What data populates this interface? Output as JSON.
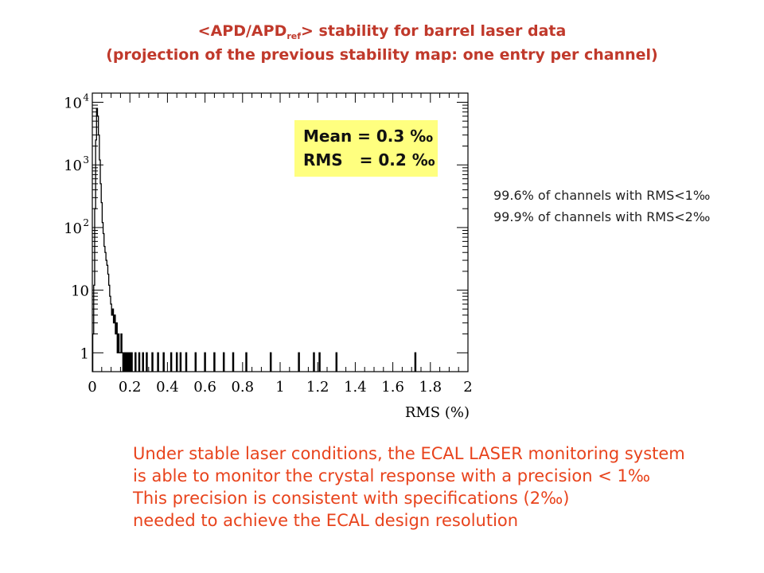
{
  "title": {
    "line1_prefix": "<APD/APD",
    "line1_sub": "ref",
    "line1_suffix": "> stability for barrel laser data",
    "line2": "(projection of the previous stability map: one entry per channel)"
  },
  "stats_box": {
    "mean": "Mean = 0.3 ‰",
    "rms": "RMS   = 0.2 ‰",
    "background": "#ffff7f"
  },
  "side_notes": [
    "99.6% of channels with RMS<1‰",
    "99.9% of channels with RMS<2‰"
  ],
  "conclusion": [
    "Under stable laser conditions, the ECAL LASER monitoring system",
    "is able to monitor the crystal response with a precision < 1‰",
    "This precision is consistent with specifications (2‰)",
    "needed to achieve the ECAL design resolution"
  ],
  "colors": {
    "title": "#c0392b",
    "conclusion": "#e8431c",
    "histogram": "#000000"
  },
  "chart_data": {
    "type": "bar",
    "title": "",
    "xlabel": "RMS (%)",
    "ylabel": "",
    "xlim": [
      0,
      2
    ],
    "ylim": [
      0.5,
      14000
    ],
    "y_scale": "log",
    "x_ticks": [
      "0",
      "0.2",
      "0.4",
      "0.6",
      "0.8",
      "1",
      "1.2",
      "1.4",
      "1.6",
      "1.8",
      "2"
    ],
    "y_ticks": [
      {
        "value": 1,
        "label": "1"
      },
      {
        "value": 10,
        "label": "10"
      },
      {
        "value": 100,
        "label": "10",
        "exp": "2"
      },
      {
        "value": 1000,
        "label": "10",
        "exp": "3"
      },
      {
        "value": 10000,
        "label": "10",
        "exp": "4"
      }
    ],
    "grid": false,
    "bin_width": 0.005,
    "bins": [
      [
        0.005,
        2
      ],
      [
        0.01,
        12
      ],
      [
        0.015,
        200
      ],
      [
        0.02,
        2500
      ],
      [
        0.025,
        8000
      ],
      [
        0.03,
        6000
      ],
      [
        0.035,
        3000
      ],
      [
        0.04,
        1200
      ],
      [
        0.045,
        500
      ],
      [
        0.05,
        250
      ],
      [
        0.055,
        120
      ],
      [
        0.06,
        80
      ],
      [
        0.065,
        50
      ],
      [
        0.07,
        40
      ],
      [
        0.075,
        30
      ],
      [
        0.08,
        25
      ],
      [
        0.085,
        18
      ],
      [
        0.09,
        12
      ],
      [
        0.095,
        8
      ],
      [
        0.1,
        6
      ],
      [
        0.105,
        4
      ],
      [
        0.11,
        5
      ],
      [
        0.115,
        3
      ],
      [
        0.12,
        4
      ],
      [
        0.125,
        2
      ],
      [
        0.13,
        3
      ],
      [
        0.135,
        1
      ],
      [
        0.14,
        2
      ],
      [
        0.145,
        1
      ],
      [
        0.15,
        1
      ],
      [
        0.155,
        2
      ],
      [
        0.16,
        1
      ],
      [
        0.17,
        1
      ],
      [
        0.18,
        1
      ],
      [
        0.19,
        1
      ],
      [
        0.2,
        1
      ],
      [
        0.21,
        1
      ],
      [
        0.23,
        1
      ],
      [
        0.25,
        1
      ],
      [
        0.27,
        1
      ],
      [
        0.29,
        1
      ],
      [
        0.32,
        1
      ],
      [
        0.35,
        1
      ],
      [
        0.38,
        1
      ],
      [
        0.42,
        1
      ],
      [
        0.45,
        1
      ],
      [
        0.47,
        1
      ],
      [
        0.5,
        1
      ],
      [
        0.55,
        1
      ],
      [
        0.6,
        1
      ],
      [
        0.65,
        1
      ],
      [
        0.7,
        1
      ],
      [
        0.75,
        1
      ],
      [
        0.82,
        1
      ],
      [
        0.95,
        1
      ],
      [
        1.1,
        1
      ],
      [
        1.18,
        1
      ],
      [
        1.21,
        1
      ],
      [
        1.3,
        1
      ],
      [
        1.72,
        1
      ]
    ]
  }
}
